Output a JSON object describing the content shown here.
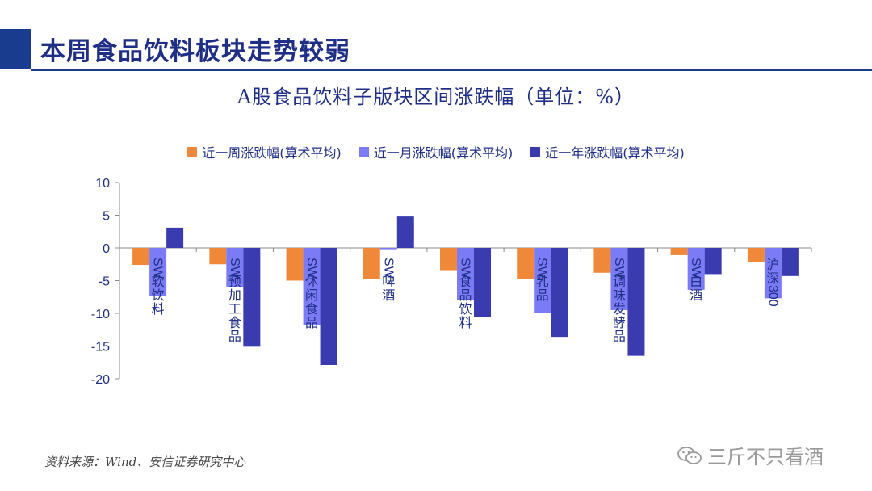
{
  "page": {
    "title": "本周食品饮料板块走势较弱",
    "source": "资料来源：Wind、安信证券研究中心",
    "watermark": "三斤不只看酒",
    "colors": {
      "accent": "#1a3c8f",
      "week": "#f0883a",
      "month": "#7b7bf5",
      "year": "#3b3bb0"
    }
  },
  "chart_data": {
    "type": "bar",
    "title": "A股食品饮料子版块区间涨跌幅（单位：%）",
    "categories": [
      "SW软饮料",
      "SW预加工食品",
      "SW休闲食品",
      "SW啤酒",
      "SW食品饮料",
      "SW乳品",
      "SW调味发酵品",
      "SW白酒",
      "沪深300"
    ],
    "series": [
      {
        "name": "近一周涨跌幅(算术平均)",
        "values": [
          -2.6,
          -2.5,
          -5.0,
          -4.8,
          -3.4,
          -4.8,
          -3.8,
          -1.1,
          -2.1
        ]
      },
      {
        "name": "近一月涨跌幅(算术平均)",
        "values": [
          -7.3,
          -6.0,
          -11.8,
          -0.2,
          -8.0,
          -10.0,
          -9.5,
          -6.4,
          -7.7
        ]
      },
      {
        "name": "近一年涨跌幅(算术平均)",
        "values": [
          3.1,
          -15.1,
          -17.9,
          4.8,
          -10.6,
          -13.6,
          -16.5,
          -4.0,
          -4.3
        ]
      }
    ],
    "ylim": [
      -20,
      10
    ],
    "yticks": [
      10,
      5,
      0,
      -5,
      -10,
      -15,
      -20
    ],
    "ytick_labels": [
      "10",
      "5",
      "0",
      "-5",
      "-10",
      "-15",
      "-20"
    ],
    "xlabel": "",
    "ylabel": "",
    "legend_position": "top"
  }
}
